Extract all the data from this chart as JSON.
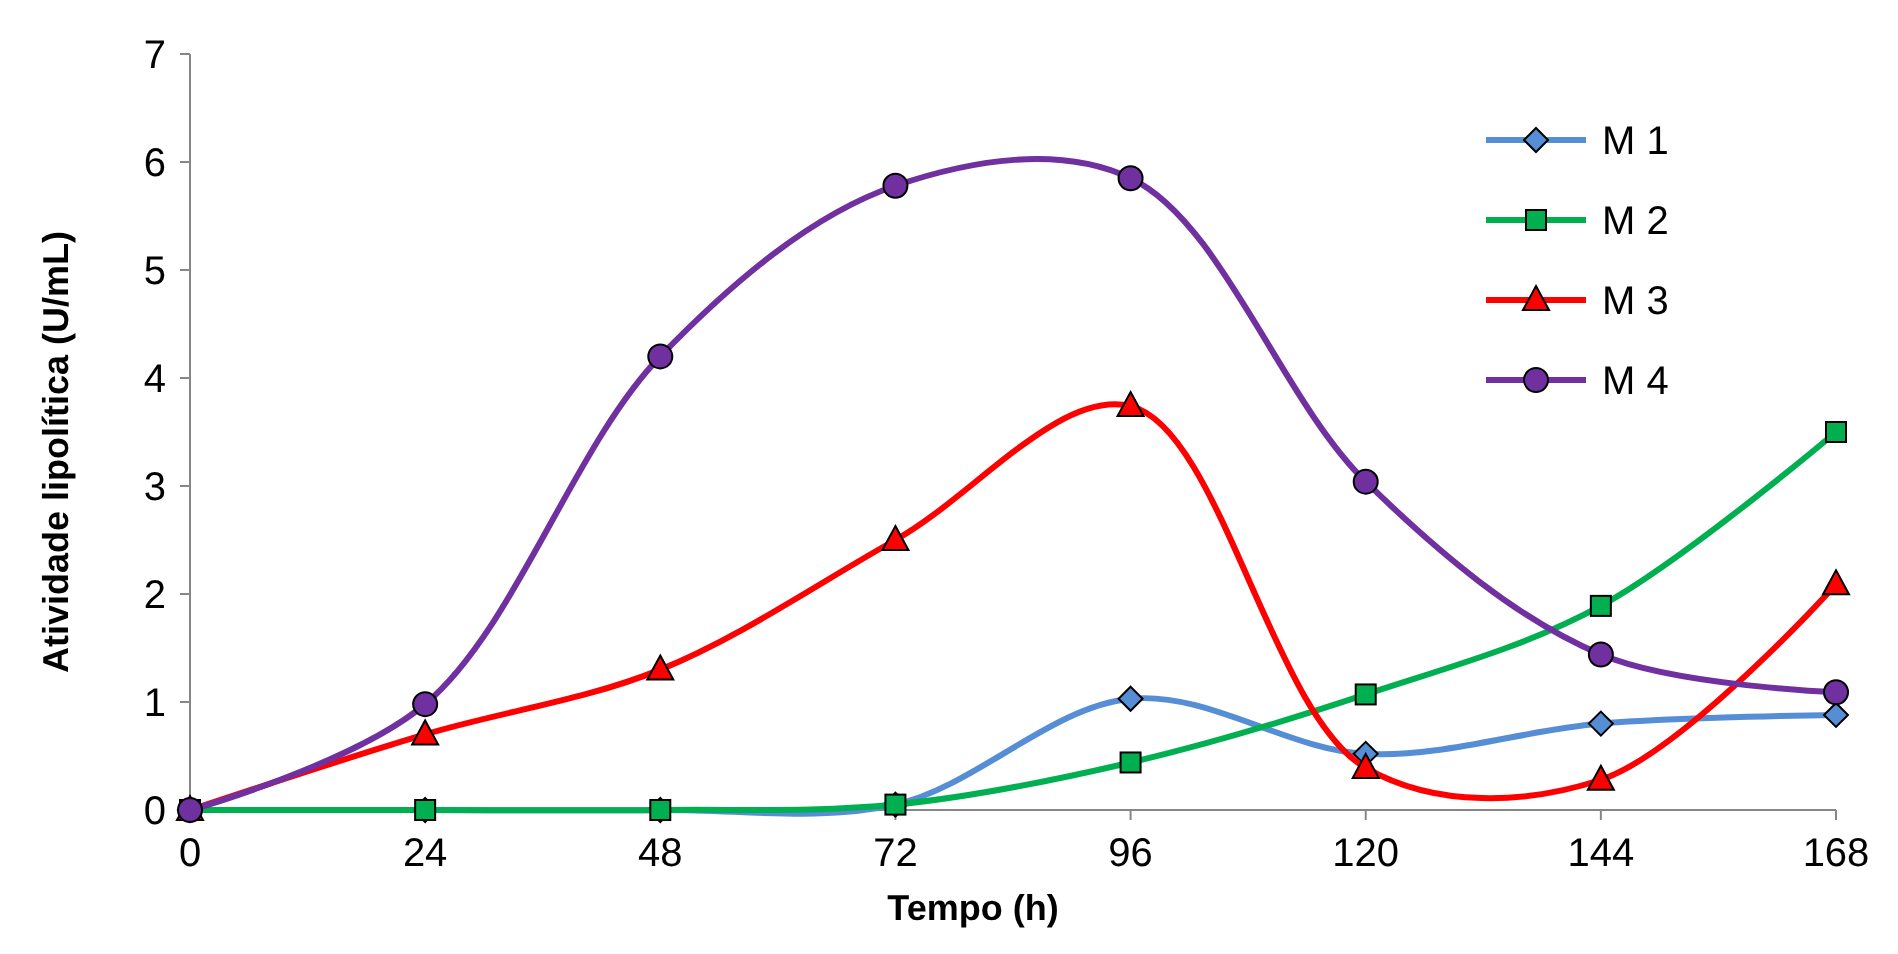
{
  "chart_data": {
    "type": "line",
    "xlabel": "Tempo (h)",
    "ylabel": "Atividade lipolítica (U/mL)",
    "x": [
      0,
      24,
      48,
      72,
      96,
      120,
      144,
      168
    ],
    "series": [
      {
        "name": "M 1",
        "color": "#558ed5",
        "marker": "diamond",
        "values": [
          0,
          0,
          0,
          0.05,
          1.03,
          0.52,
          0.8,
          0.88
        ]
      },
      {
        "name": "M 2",
        "color": "#00b050",
        "marker": "square",
        "values": [
          0,
          0,
          0,
          0.05,
          0.44,
          1.07,
          1.89,
          3.5
        ]
      },
      {
        "name": "M 3",
        "color": "#ff0000",
        "marker": "triangle",
        "values": [
          0,
          0.7,
          1.3,
          2.5,
          3.74,
          0.39,
          0.28,
          2.09
        ]
      },
      {
        "name": "M 4",
        "color": "#7030a0",
        "marker": "circle",
        "values": [
          0,
          0.98,
          4.2,
          5.78,
          5.85,
          3.04,
          1.44,
          1.09
        ]
      }
    ],
    "xlim": [
      0,
      168
    ],
    "xticks": [
      0,
      24,
      48,
      72,
      96,
      120,
      144,
      168
    ],
    "ylim": [
      0,
      7
    ],
    "yticks": [
      0,
      1,
      2,
      3,
      4,
      5,
      6,
      7
    ],
    "grid": false,
    "legend": "top right"
  }
}
